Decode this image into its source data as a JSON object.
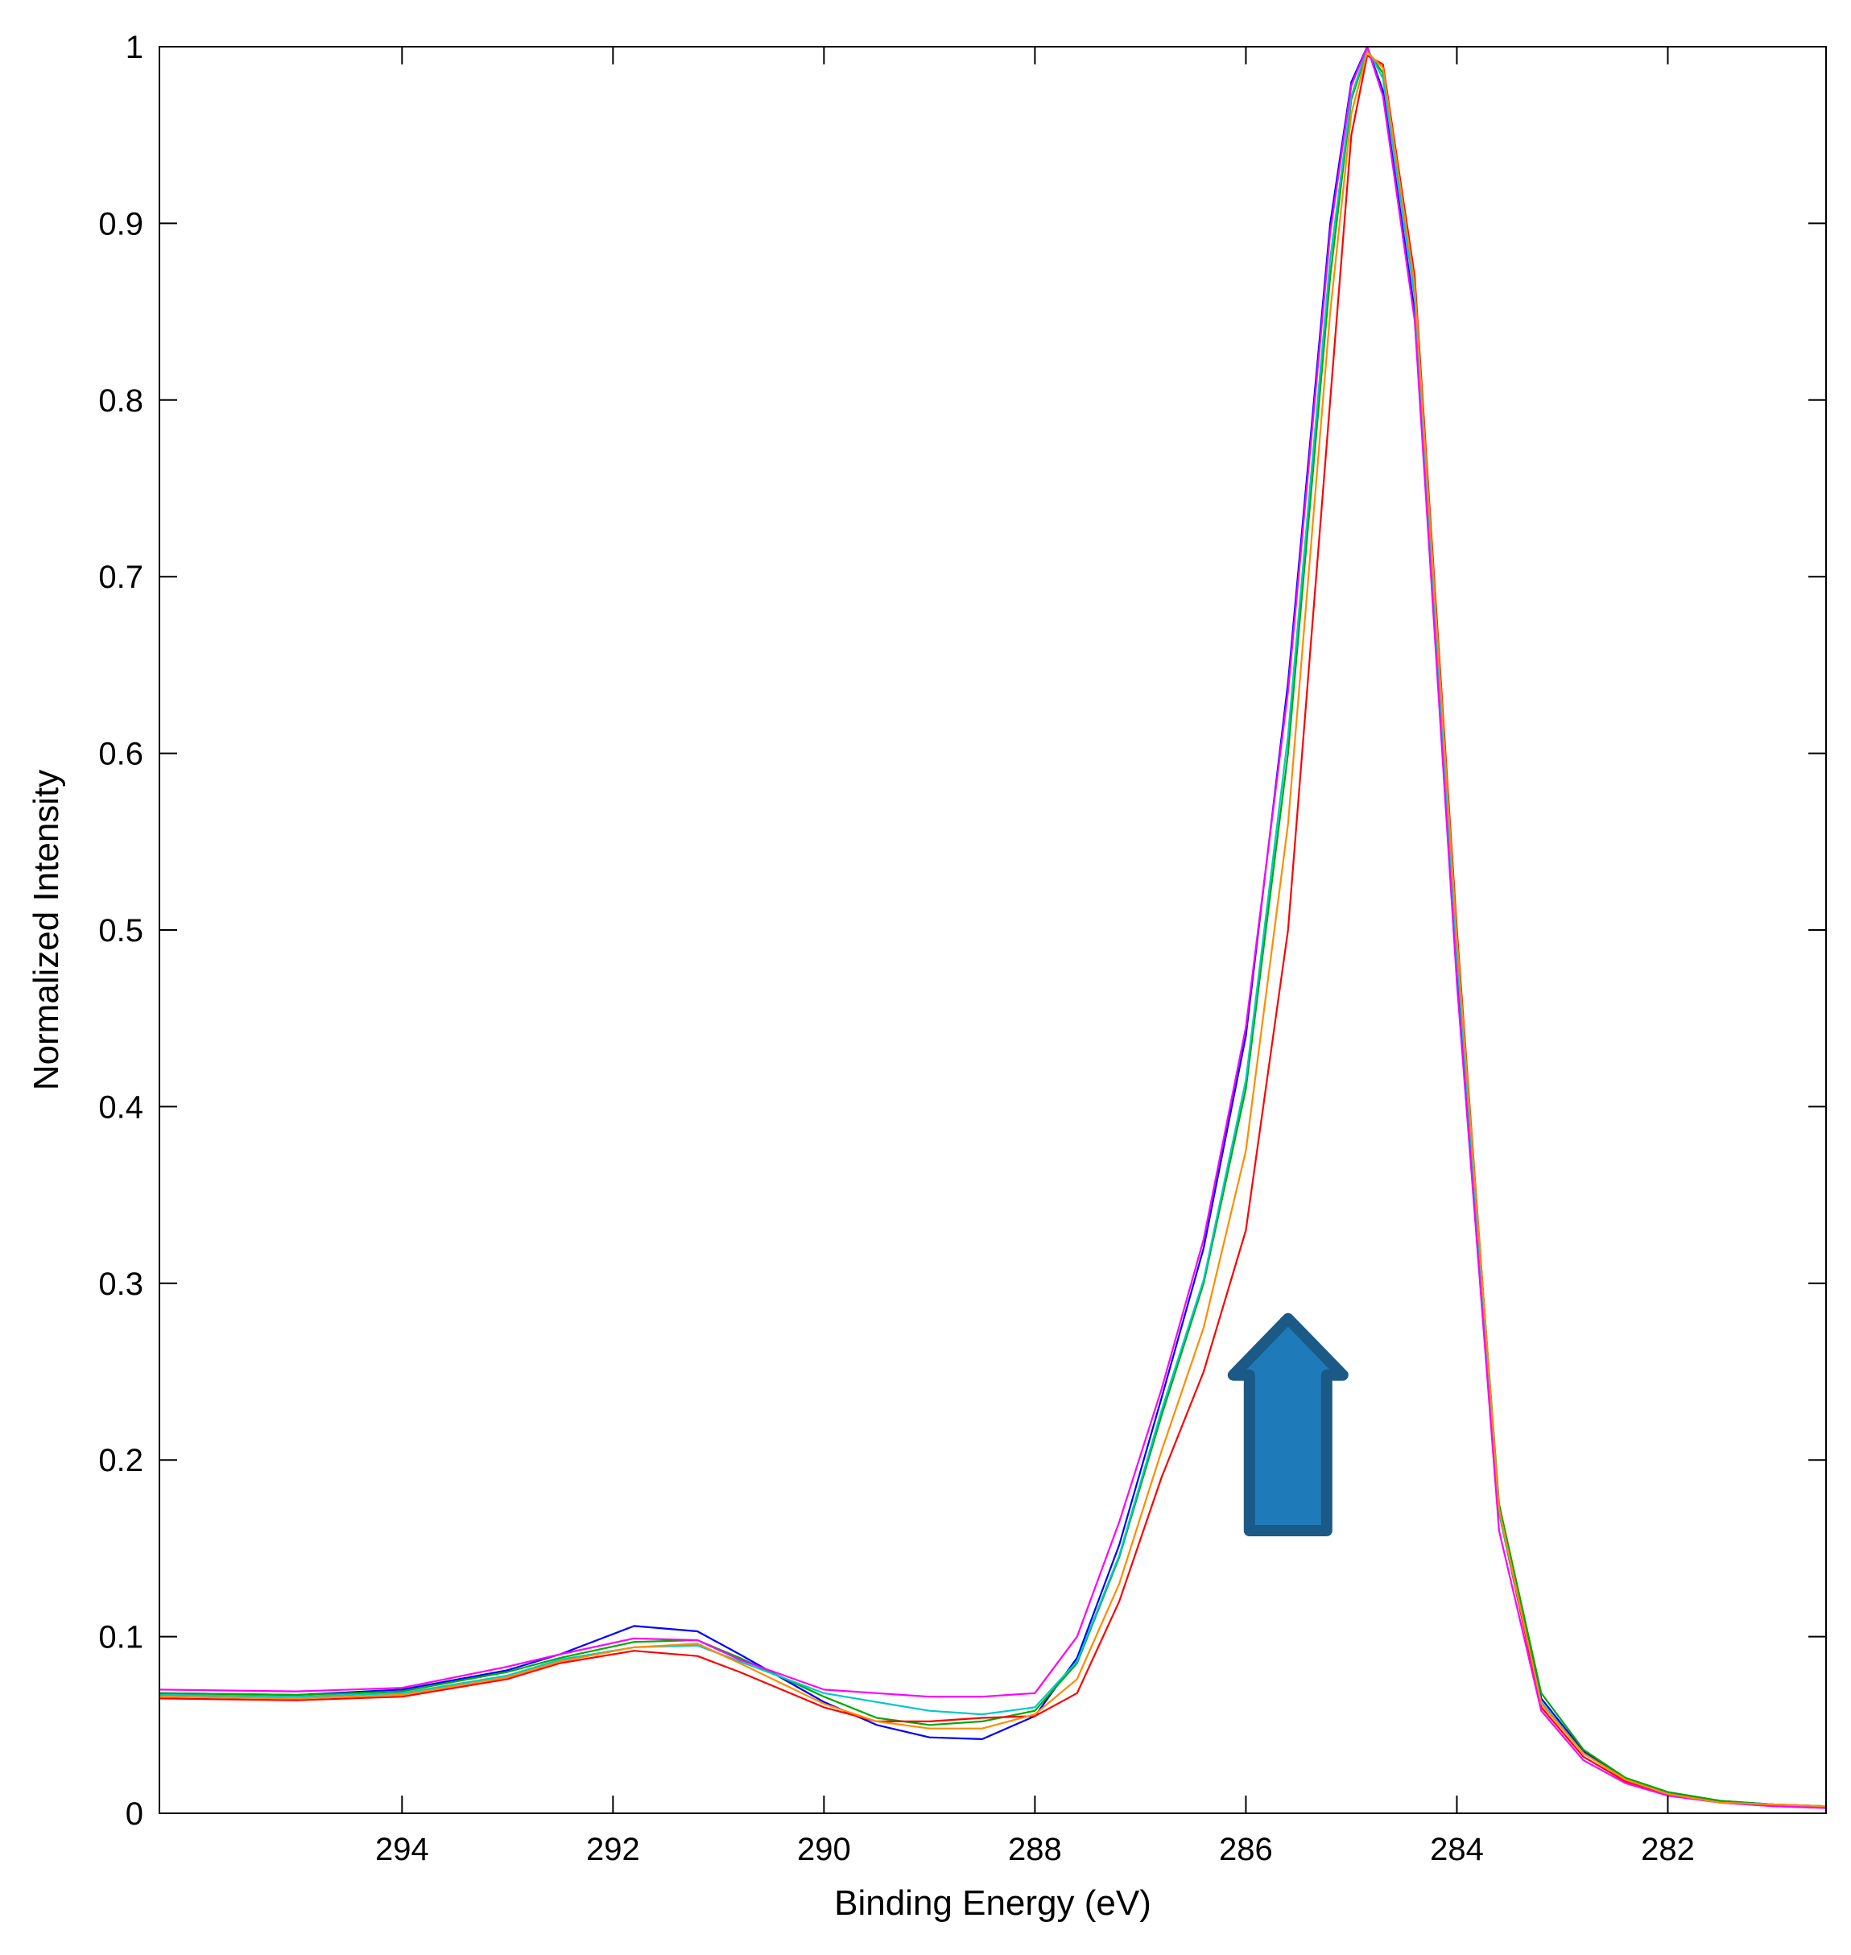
{
  "chart_data": {
    "type": "line",
    "title": "",
    "xlabel": "Binding Energy (eV)",
    "ylabel": "Normalized Intensity",
    "xlim": [
      296.3,
      280.5
    ],
    "ylim": [
      0,
      1
    ],
    "x_reversed": true,
    "xticks": [
      294,
      292,
      290,
      288,
      286,
      284,
      282
    ],
    "yticks": [
      0,
      0.1,
      0.2,
      0.3,
      0.4,
      0.5,
      0.6,
      0.7,
      0.8,
      0.9,
      1
    ],
    "grid": false,
    "legend": "none",
    "annotation": {
      "type": "arrow",
      "direction": "up",
      "x": 285.6,
      "y_from": 0.16,
      "y_to": 0.28,
      "color": "#1f7ab9",
      "stroke": "#1b5a86"
    },
    "series": [
      {
        "color": "#0000ff",
        "x": [
          296.3,
          295,
          294,
          293,
          292.5,
          291.8,
          291.2,
          290.8,
          290,
          289.5,
          289,
          288.5,
          288,
          287.6,
          287.2,
          286.8,
          286.4,
          286,
          285.6,
          285.2,
          285,
          284.85,
          284.7,
          284.4,
          284,
          283.6,
          283.2,
          282.8,
          282.4,
          282,
          281.5,
          281,
          280.5
        ],
        "y": [
          0.068,
          0.067,
          0.07,
          0.081,
          0.09,
          0.106,
          0.103,
          0.09,
          0.063,
          0.05,
          0.043,
          0.042,
          0.055,
          0.088,
          0.152,
          0.235,
          0.32,
          0.44,
          0.64,
          0.9,
          0.98,
          1.0,
          0.975,
          0.85,
          0.48,
          0.17,
          0.065,
          0.035,
          0.02,
          0.012,
          0.007,
          0.005,
          0.004
        ]
      },
      {
        "color": "#00aa00",
        "x": [
          296.3,
          295,
          294,
          293,
          292.5,
          291.8,
          291.2,
          290.8,
          290,
          289.5,
          289,
          288.5,
          288,
          287.6,
          287.2,
          286.8,
          286.4,
          286,
          285.6,
          285.2,
          285,
          284.85,
          284.7,
          284.4,
          284,
          283.6,
          283.2,
          282.8,
          282.4,
          282,
          281.5,
          281,
          280.5
        ],
        "y": [
          0.068,
          0.067,
          0.069,
          0.08,
          0.088,
          0.097,
          0.098,
          0.088,
          0.066,
          0.054,
          0.05,
          0.052,
          0.058,
          0.085,
          0.145,
          0.225,
          0.3,
          0.41,
          0.6,
          0.87,
          0.97,
          0.998,
          0.985,
          0.86,
          0.49,
          0.175,
          0.068,
          0.036,
          0.02,
          0.012,
          0.007,
          0.005,
          0.004
        ]
      },
      {
        "color": "#ff0000",
        "x": [
          296.3,
          295,
          294,
          293,
          292.5,
          291.8,
          291.2,
          290.8,
          290,
          289.5,
          289,
          288.5,
          288,
          287.6,
          287.2,
          286.8,
          286.4,
          286,
          285.6,
          285.2,
          285,
          284.85,
          284.7,
          284.4,
          284,
          283.6,
          283.2,
          282.8,
          282.4,
          282,
          281.5,
          281,
          280.5
        ],
        "y": [
          0.065,
          0.064,
          0.066,
          0.076,
          0.085,
          0.092,
          0.089,
          0.08,
          0.06,
          0.052,
          0.052,
          0.054,
          0.055,
          0.068,
          0.12,
          0.19,
          0.25,
          0.33,
          0.5,
          0.8,
          0.95,
          0.995,
          0.99,
          0.87,
          0.5,
          0.17,
          0.06,
          0.032,
          0.018,
          0.011,
          0.006,
          0.004,
          0.003
        ]
      },
      {
        "color": "#00c8c8",
        "x": [
          296.3,
          295,
          294,
          293,
          292.5,
          291.8,
          291.2,
          290.8,
          290,
          289.5,
          289,
          288.5,
          288,
          287.6,
          287.2,
          286.8,
          286.4,
          286,
          285.6,
          285.2,
          285,
          284.85,
          284.7,
          284.4,
          284,
          283.6,
          283.2,
          282.8,
          282.4,
          282,
          281.5,
          281,
          280.5
        ],
        "y": [
          0.067,
          0.066,
          0.068,
          0.078,
          0.087,
          0.094,
          0.095,
          0.086,
          0.068,
          0.063,
          0.058,
          0.056,
          0.06,
          0.086,
          0.146,
          0.228,
          0.302,
          0.415,
          0.61,
          0.88,
          0.972,
          0.999,
          0.982,
          0.858,
          0.485,
          0.17,
          0.063,
          0.034,
          0.019,
          0.011,
          0.006,
          0.005,
          0.004
        ]
      },
      {
        "color": "#ff00ff",
        "x": [
          296.3,
          295,
          294,
          293,
          292.5,
          291.8,
          291.2,
          290.8,
          290,
          289.5,
          289,
          288.5,
          288,
          287.6,
          287.2,
          286.8,
          286.4,
          286,
          285.6,
          285.2,
          285,
          284.85,
          284.7,
          284.4,
          284,
          283.6,
          283.2,
          282.8,
          282.4,
          282,
          281.5,
          281,
          280.5
        ],
        "y": [
          0.07,
          0.069,
          0.071,
          0.083,
          0.09,
          0.099,
          0.098,
          0.087,
          0.07,
          0.068,
          0.066,
          0.066,
          0.068,
          0.1,
          0.165,
          0.24,
          0.325,
          0.445,
          0.635,
          0.895,
          0.978,
          1.0,
          0.972,
          0.845,
          0.47,
          0.16,
          0.058,
          0.03,
          0.017,
          0.01,
          0.006,
          0.004,
          0.003
        ]
      },
      {
        "color": "#ff8c00",
        "x": [
          296.3,
          295,
          294,
          293,
          292.5,
          291.8,
          291.2,
          290.8,
          290,
          289.5,
          289,
          288.5,
          288,
          287.6,
          287.2,
          286.8,
          286.4,
          286,
          285.6,
          285.2,
          285,
          284.85,
          284.7,
          284.4,
          284,
          283.6,
          283.2,
          282.8,
          282.4,
          282,
          281.5,
          281,
          280.5
        ],
        "y": [
          0.066,
          0.065,
          0.067,
          0.077,
          0.086,
          0.094,
          0.096,
          0.085,
          0.062,
          0.052,
          0.048,
          0.048,
          0.056,
          0.076,
          0.13,
          0.205,
          0.275,
          0.375,
          0.56,
          0.85,
          0.962,
          0.997,
          0.988,
          0.865,
          0.495,
          0.172,
          0.062,
          0.034,
          0.019,
          0.011,
          0.006,
          0.005,
          0.004
        ]
      }
    ]
  }
}
